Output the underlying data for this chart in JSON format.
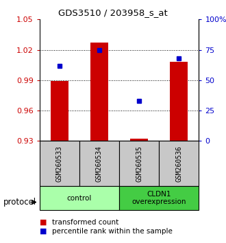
{
  "title": "GDS3510 / 203958_s_at",
  "samples": [
    "GSM260533",
    "GSM260534",
    "GSM260535",
    "GSM260536"
  ],
  "bar_bottom": 0.93,
  "bar_tops": [
    0.989,
    1.027,
    0.932,
    1.008
  ],
  "percentile_ranks": [
    62,
    75,
    33,
    68
  ],
  "ylim": [
    0.93,
    1.05
  ],
  "yticks_left": [
    0.93,
    0.96,
    0.99,
    1.02,
    1.05
  ],
  "yticks_left_labels": [
    "0.93",
    "0.96",
    "0.99",
    "1.02",
    "1.05"
  ],
  "yticks_right": [
    0,
    25,
    50,
    75,
    100
  ],
  "yticks_right_labels": [
    "0",
    "25",
    "50",
    "75",
    "100%"
  ],
  "bar_color": "#cc0000",
  "dot_color": "#0000cc",
  "groups": [
    {
      "label": "control",
      "indices": [
        0,
        1
      ],
      "color": "#aaffaa"
    },
    {
      "label": "CLDN1\noverexpression",
      "indices": [
        2,
        3
      ],
      "color": "#44cc44"
    }
  ],
  "protocol_label": "protocol",
  "legend_bar_label": "transformed count",
  "legend_dot_label": "percentile rank within the sample",
  "left_tick_color": "#cc0000",
  "right_tick_color": "#0000cc",
  "sample_box_color": "#c8c8c8",
  "grid_dotted_color": "#555555",
  "bar_width": 0.45
}
